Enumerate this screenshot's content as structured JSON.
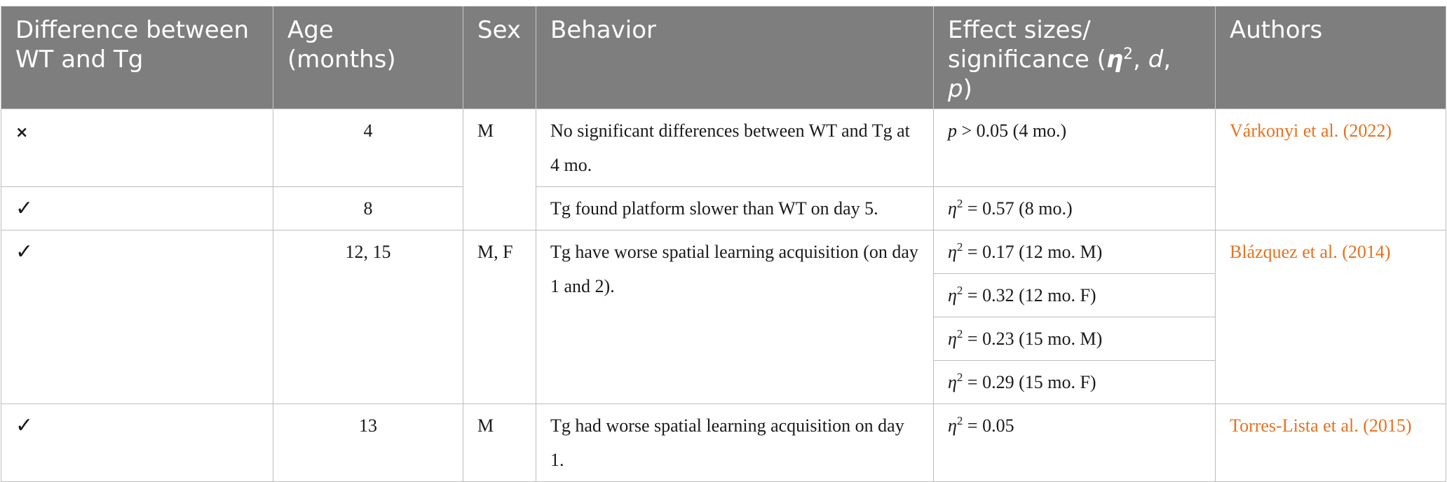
{
  "table": {
    "headers": {
      "difference": "Difference between WT and Tg",
      "age": "Age (months)",
      "sex": "Sex",
      "behavior": "Behavior",
      "effect_prefix": "Effect sizes/ significance (",
      "effect_eta": "η",
      "effect_sup": "2",
      "effect_sep1": ", ",
      "effect_d": "d",
      "effect_sep2": ", ",
      "effect_p": "p",
      "effect_suffix": ")",
      "authors": "Authors"
    },
    "rows": [
      {
        "difference": "×",
        "age": "4",
        "sex": "M",
        "behavior": "No significant differences between WT and Tg at 4 mo.",
        "effect_symbol": "p",
        "effect_value": " > 0.05 (4 mo.)",
        "authors": "Várkonyi et al. (2022)"
      },
      {
        "difference": "✓",
        "age": "8",
        "behavior": "Tg found platform slower than WT on day 5.",
        "effect_symbol": "η",
        "effect_sup": "2",
        "effect_value": " = 0.57 (8 mo.)"
      },
      {
        "difference": "✓",
        "age": "12, 15",
        "sex": "M, F",
        "behavior": "Tg have worse spatial learning acquisition (on day 1 and 2).",
        "effects": [
          {
            "symbol": "η",
            "sup": "2",
            "value": " = 0.17 (12 mo. M)"
          },
          {
            "symbol": "η",
            "sup": "2",
            "value": " = 0.32 (12 mo. F)"
          },
          {
            "symbol": "η",
            "sup": "2",
            "value": " = 0.23 (15 mo. M)"
          },
          {
            "symbol": "η",
            "sup": "2",
            "value": " = 0.29 (15 mo. F)"
          }
        ],
        "authors": "Blázquez et al. (2014)"
      },
      {
        "difference": "✓",
        "age": "13",
        "sex": "M",
        "behavior": "Tg had worse spatial learning acquisition on day 1.",
        "effect_symbol": "η",
        "effect_sup": "2",
        "effect_value": " = 0.05",
        "authors": "Torres-Lista et al. (2015)"
      }
    ]
  },
  "colors": {
    "header_bg": "#7d7e7d",
    "link": "#e6721f"
  }
}
